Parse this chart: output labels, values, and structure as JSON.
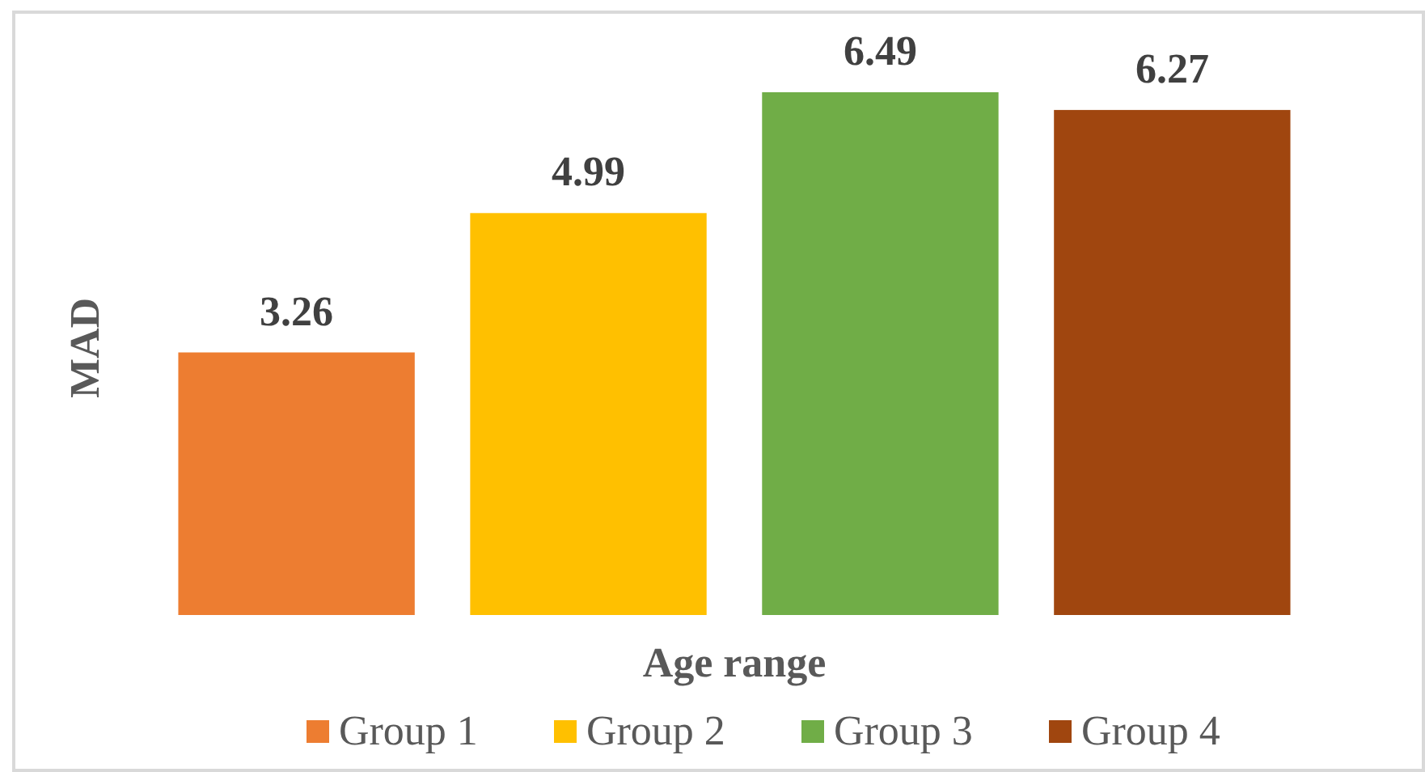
{
  "chart_data": {
    "type": "bar",
    "xlabel": "Age range",
    "ylabel": "MAD",
    "categories": [
      null
    ],
    "series": [
      {
        "name": "Group 1",
        "color": "#ed7d31",
        "values": [
          3.26
        ]
      },
      {
        "name": "Group 2",
        "color": "#ffc000",
        "values": [
          4.99
        ]
      },
      {
        "name": "Group 3",
        "color": "#70ad47",
        "values": [
          6.49
        ]
      },
      {
        "name": "Group 4",
        "color": "#a0460f",
        "values": [
          6.27
        ]
      }
    ],
    "data_labels": true,
    "legend": "bottom"
  }
}
